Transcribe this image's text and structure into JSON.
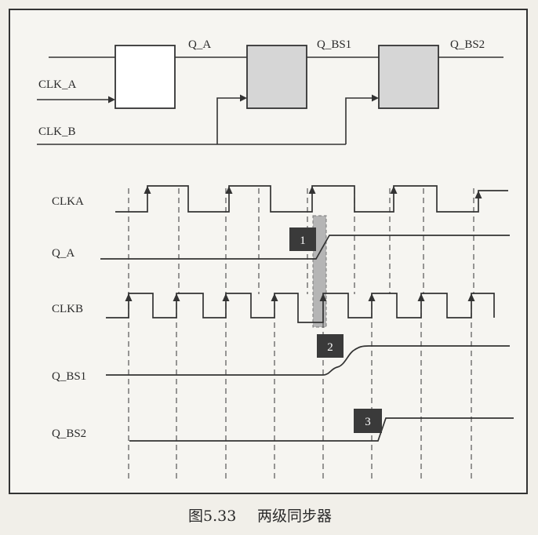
{
  "circuit": {
    "inputs": {
      "clk_a": "CLK_A",
      "clk_b": "CLK_B"
    },
    "signals": {
      "q_a": "Q_A",
      "q_bs1": "Q_BS1",
      "q_bs2": "Q_BS2"
    }
  },
  "timing": {
    "rows": [
      "CLKA",
      "Q_A",
      "CLKB",
      "Q_BS1",
      "Q_BS2"
    ],
    "markers": [
      "1",
      "2",
      "3"
    ]
  },
  "caption": {
    "figure": "图5.33",
    "title": "两级同步器"
  },
  "colors": {
    "page": "#f1efe9",
    "ink": "#333333",
    "flipflop_fill": "#d6d6d6",
    "marker_fill": "#3a3a3a",
    "metastable_band": "#b5b5b5"
  }
}
